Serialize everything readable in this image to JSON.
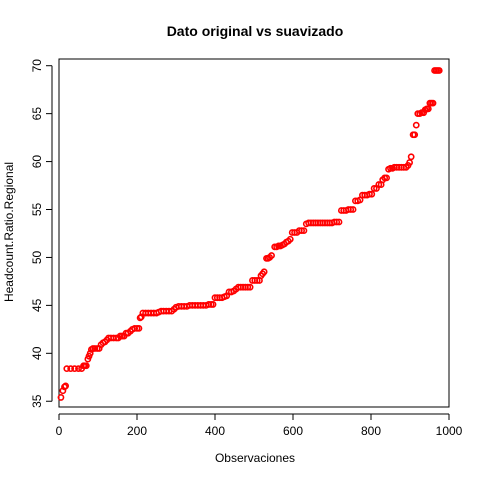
{
  "chart_data": {
    "type": "scatter",
    "title": "Dato original vs suavizado",
    "xlabel": "Observaciones",
    "ylabel": "Headcount.Ratio.Regional",
    "xlim": [
      0,
      1000
    ],
    "ylim": [
      34.4,
      70.7
    ],
    "xticks": [
      0,
      200,
      400,
      600,
      800,
      1000
    ],
    "yticks": [
      35,
      40,
      45,
      50,
      55,
      60,
      65,
      70
    ],
    "grid": false,
    "legend": "none",
    "marker_color": "#ff0000",
    "marker": "open-circle",
    "series": [
      {
        "points": [
          [
            5,
            35.4
          ],
          [
            10,
            36.1
          ],
          [
            14,
            36.5
          ],
          [
            17,
            36.6
          ],
          [
            20,
            38.4
          ],
          [
            30,
            38.4
          ],
          [
            40,
            38.4
          ],
          [
            50,
            38.4
          ],
          [
            58,
            38.4
          ],
          [
            63,
            38.7
          ],
          [
            66,
            38.7
          ],
          [
            70,
            38.7
          ],
          [
            74,
            39.4
          ],
          [
            77,
            39.7
          ],
          [
            80,
            40.0
          ],
          [
            83,
            40.4
          ],
          [
            87,
            40.5
          ],
          [
            92,
            40.5
          ],
          [
            98,
            40.5
          ],
          [
            103,
            40.5
          ],
          [
            108,
            40.9
          ],
          [
            113,
            41.1
          ],
          [
            118,
            41.2
          ],
          [
            123,
            41.4
          ],
          [
            127,
            41.6
          ],
          [
            133,
            41.6
          ],
          [
            140,
            41.6
          ],
          [
            147,
            41.6
          ],
          [
            152,
            41.6
          ],
          [
            157,
            41.8
          ],
          [
            162,
            41.8
          ],
          [
            167,
            41.8
          ],
          [
            172,
            42.1
          ],
          [
            177,
            42.1
          ],
          [
            183,
            42.3
          ],
          [
            188,
            42.5
          ],
          [
            194,
            42.6
          ],
          [
            200,
            42.6
          ],
          [
            205,
            42.6
          ],
          [
            208,
            43.7
          ],
          [
            211,
            43.8
          ],
          [
            215,
            44.2
          ],
          [
            222,
            44.2
          ],
          [
            229,
            44.2
          ],
          [
            236,
            44.2
          ],
          [
            243,
            44.2
          ],
          [
            250,
            44.2
          ],
          [
            256,
            44.3
          ],
          [
            262,
            44.4
          ],
          [
            268,
            44.4
          ],
          [
            275,
            44.4
          ],
          [
            282,
            44.4
          ],
          [
            289,
            44.4
          ],
          [
            295,
            44.6
          ],
          [
            300,
            44.8
          ],
          [
            307,
            44.9
          ],
          [
            314,
            44.9
          ],
          [
            321,
            44.9
          ],
          [
            328,
            44.9
          ],
          [
            335,
            45.0
          ],
          [
            342,
            45.0
          ],
          [
            349,
            45.0
          ],
          [
            356,
            45.0
          ],
          [
            363,
            45.0
          ],
          [
            370,
            45.0
          ],
          [
            377,
            45.0
          ],
          [
            384,
            45.1
          ],
          [
            390,
            45.1
          ],
          [
            395,
            45.1
          ],
          [
            400,
            45.8
          ],
          [
            406,
            45.8
          ],
          [
            412,
            45.8
          ],
          [
            418,
            45.8
          ],
          [
            424,
            45.9
          ],
          [
            430,
            46.0
          ],
          [
            436,
            46.4
          ],
          [
            442,
            46.4
          ],
          [
            448,
            46.5
          ],
          [
            454,
            46.7
          ],
          [
            460,
            46.9
          ],
          [
            466,
            46.9
          ],
          [
            472,
            46.9
          ],
          [
            478,
            46.9
          ],
          [
            484,
            46.9
          ],
          [
            490,
            46.9
          ],
          [
            496,
            47.6
          ],
          [
            502,
            47.6
          ],
          [
            508,
            47.6
          ],
          [
            514,
            47.6
          ],
          [
            518,
            48.1
          ],
          [
            522,
            48.3
          ],
          [
            526,
            48.5
          ],
          [
            532,
            49.9
          ],
          [
            536,
            49.9
          ],
          [
            540,
            50.0
          ],
          [
            545,
            50.2
          ],
          [
            553,
            51.1
          ],
          [
            558,
            51.1
          ],
          [
            563,
            51.2
          ],
          [
            568,
            51.2
          ],
          [
            573,
            51.3
          ],
          [
            578,
            51.4
          ],
          [
            583,
            51.6
          ],
          [
            588,
            51.7
          ],
          [
            593,
            51.9
          ],
          [
            598,
            52.6
          ],
          [
            604,
            52.6
          ],
          [
            610,
            52.6
          ],
          [
            616,
            52.8
          ],
          [
            622,
            52.8
          ],
          [
            628,
            52.8
          ],
          [
            634,
            53.5
          ],
          [
            640,
            53.6
          ],
          [
            646,
            53.6
          ],
          [
            652,
            53.6
          ],
          [
            658,
            53.6
          ],
          [
            664,
            53.6
          ],
          [
            670,
            53.6
          ],
          [
            676,
            53.6
          ],
          [
            682,
            53.6
          ],
          [
            688,
            53.6
          ],
          [
            694,
            53.6
          ],
          [
            700,
            53.6
          ],
          [
            706,
            53.7
          ],
          [
            712,
            53.7
          ],
          [
            718,
            53.7
          ],
          [
            724,
            54.9
          ],
          [
            730,
            54.9
          ],
          [
            736,
            54.9
          ],
          [
            742,
            55.0
          ],
          [
            748,
            55.0
          ],
          [
            754,
            55.0
          ],
          [
            760,
            55.9
          ],
          [
            766,
            55.9
          ],
          [
            772,
            56.0
          ],
          [
            778,
            56.5
          ],
          [
            784,
            56.5
          ],
          [
            790,
            56.5
          ],
          [
            796,
            56.6
          ],
          [
            802,
            56.6
          ],
          [
            808,
            57.2
          ],
          [
            814,
            57.2
          ],
          [
            820,
            57.6
          ],
          [
            826,
            57.6
          ],
          [
            830,
            58.1
          ],
          [
            835,
            58.3
          ],
          [
            840,
            58.3
          ],
          [
            845,
            59.2
          ],
          [
            850,
            59.3
          ],
          [
            855,
            59.3
          ],
          [
            860,
            59.4
          ],
          [
            866,
            59.4
          ],
          [
            872,
            59.4
          ],
          [
            878,
            59.4
          ],
          [
            884,
            59.4
          ],
          [
            890,
            59.4
          ],
          [
            895,
            59.6
          ],
          [
            899,
            59.9
          ],
          [
            903,
            60.5
          ],
          [
            908,
            62.8
          ],
          [
            912,
            62.8
          ],
          [
            916,
            63.8
          ],
          [
            920,
            65.0
          ],
          [
            925,
            65.0
          ],
          [
            930,
            65.1
          ],
          [
            935,
            65.1
          ],
          [
            939,
            65.4
          ],
          [
            943,
            65.5
          ],
          [
            947,
            65.5
          ],
          [
            951,
            66.1
          ],
          [
            955,
            66.1
          ],
          [
            959,
            66.1
          ],
          [
            963,
            69.5
          ],
          [
            967,
            69.5
          ],
          [
            971,
            69.5
          ],
          [
            975,
            69.5
          ]
        ]
      }
    ]
  }
}
